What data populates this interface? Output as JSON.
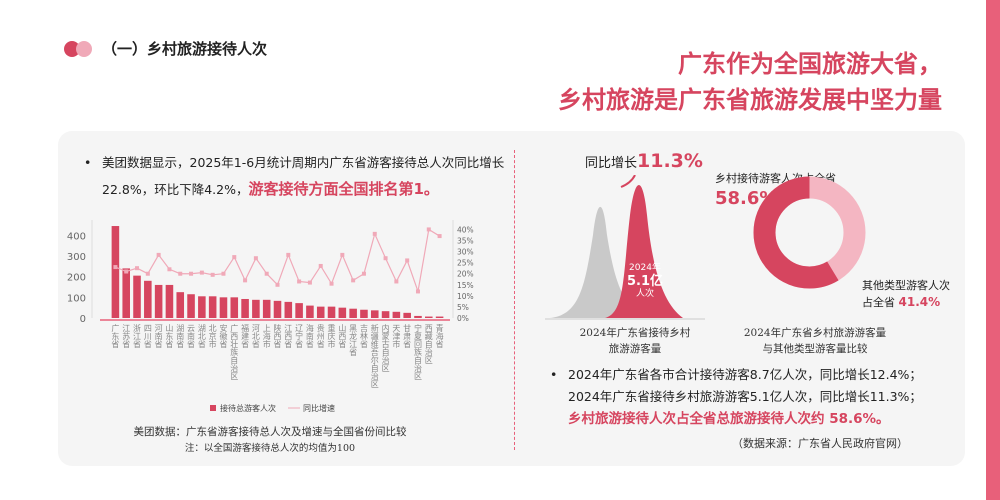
{
  "section_title": "（一）乡村旅游接待人次",
  "headline": [
    "广东作为全国旅游大省，",
    "乡村旅游是广东省旅游发展中坚力量"
  ],
  "left": {
    "bullet_text": "美团数据显示，2025年1-6月统计周期内广东省游客接待总人次同比增长22.8%，环比下降4.2%，",
    "bullet_highlight": "游客接待方面全国排名第1。",
    "caption": "美团数据：广东省游客接待总人次及增速与全国省份间比较",
    "note": "注：以全国游客接待总人次的均值为100"
  },
  "chart_data": {
    "type": "bar+line",
    "categories": [
      "广东省",
      "江苏省",
      "浙江省",
      "四川省",
      "河南省",
      "山东省",
      "湖南省",
      "云南省",
      "湖北省",
      "北京市",
      "安徽省",
      "广西壮族自治区",
      "福建省",
      "河北省",
      "上海市",
      "陕西省",
      "江西省",
      "辽宁省",
      "海南省",
      "贵州省",
      "重庆市",
      "山西省",
      "黑龙江省",
      "吉林省",
      "新疆维吾尔自治区",
      "内蒙古自治区",
      "天津市",
      "甘肃省",
      "宁夏回族自治区",
      "西藏自治区",
      "青海省"
    ],
    "series": [
      {
        "name": "接待总游客人次",
        "axis": "left",
        "type": "bar",
        "color": "#d6455f",
        "values": [
          445,
          240,
          205,
          180,
          160,
          160,
          125,
          115,
          105,
          105,
          100,
          100,
          92,
          88,
          88,
          83,
          78,
          72,
          60,
          55,
          55,
          50,
          45,
          40,
          37,
          33,
          30,
          25,
          10,
          7,
          7
        ]
      },
      {
        "name": "同比增速",
        "axis": "right",
        "type": "line",
        "color": "#f0a9b8",
        "values": [
          23,
          21,
          22.5,
          20,
          28.5,
          22,
          20,
          20,
          20.5,
          19.5,
          20,
          27.5,
          17,
          27,
          20,
          15,
          28.5,
          16.5,
          16,
          23.5,
          15.5,
          28.5,
          17,
          20,
          38,
          27,
          16.5,
          26,
          12,
          40,
          37
        ]
      }
    ],
    "ylim": [
      0,
      450
    ],
    "yticks": [
      0,
      100,
      200,
      300,
      400
    ],
    "y2lim": [
      0,
      42
    ],
    "y2ticks": [
      "0%",
      "5%",
      "10%",
      "15%",
      "20%",
      "25%",
      "30%",
      "35%",
      "40%"
    ],
    "legend": "bottom"
  },
  "right": {
    "growth_label": "同比增长",
    "growth_value": "11.3%",
    "peak_year": "2024年",
    "peak_value": "5.1亿",
    "peak_unit": "人次",
    "caption1": [
      "2024年广东省接待乡村",
      "旅游游客量"
    ],
    "donut": {
      "rural_label": "乡村接待游客人次占全省",
      "rural_value": "58.6%",
      "rural_pct": 58.6,
      "other_label1": "其他类型游客人次",
      "other_label2": "占全省",
      "other_value": "41.4%",
      "colors": [
        "#d6455f",
        "#f4b6c2"
      ]
    },
    "caption2": [
      "2024年广东省乡村旅游游客量",
      "与其他类型游客量比较"
    ],
    "bullet_line1": "2024年广东省各市合计接待游客8.7亿人次，同比增长12.4%；",
    "bullet_line2": "2024年广东省接待乡村旅游游客5.1亿人次，同比增长11.3%；",
    "bullet_highlight": "乡村旅游接待人次占全省总旅游接待人次约 58.6%。",
    "source": "（数据来源：广东省人民政府官网）"
  }
}
